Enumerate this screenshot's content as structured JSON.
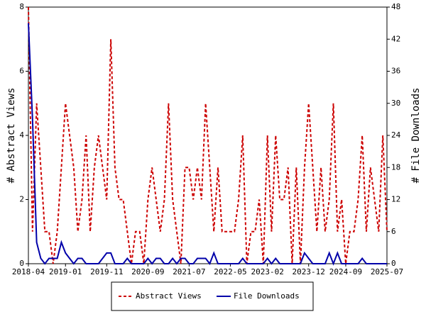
{
  "chart_data": {
    "type": "line",
    "categories": [
      "2018-04",
      null,
      null,
      null,
      null,
      null,
      null,
      null,
      null,
      "2019-01",
      null,
      null,
      null,
      null,
      null,
      null,
      null,
      null,
      null,
      "2019-11",
      null,
      null,
      null,
      null,
      null,
      null,
      null,
      null,
      null,
      "2020-09",
      null,
      null,
      null,
      null,
      null,
      null,
      null,
      null,
      null,
      "2021-07",
      null,
      null,
      null,
      null,
      null,
      null,
      null,
      null,
      null,
      "2022-05",
      null,
      null,
      null,
      null,
      null,
      null,
      null,
      null,
      "2023-02",
      null,
      null,
      null,
      null,
      null,
      null,
      null,
      null,
      null,
      "2023-12",
      null,
      null,
      null,
      null,
      null,
      null,
      null,
      null,
      "2024-09",
      null,
      null,
      null,
      null,
      null,
      null,
      null,
      null,
      null,
      "2025-07"
    ],
    "series": [
      {
        "name": "Abstract Views",
        "color": "#cc0000",
        "axis": "y",
        "values": [
          8,
          1,
          5,
          3,
          1,
          1,
          0,
          1,
          3,
          5,
          4,
          3,
          1,
          2,
          4,
          1,
          3,
          4,
          3,
          2,
          7,
          3,
          2,
          2,
          1,
          0,
          1,
          1,
          0,
          2,
          3,
          2,
          1,
          2,
          5,
          2,
          1,
          0,
          3,
          3,
          2,
          3,
          2,
          5,
          3,
          1,
          3,
          1,
          1,
          1,
          1,
          2,
          4,
          0,
          1,
          1,
          2,
          0,
          4,
          1,
          4,
          2,
          2,
          3,
          0,
          3,
          0,
          3,
          5,
          3,
          1,
          3,
          1,
          2,
          5,
          1,
          2,
          0,
          1,
          1,
          2,
          4,
          1,
          3,
          2,
          1,
          4,
          1
        ]
      },
      {
        "name": "File Downloads",
        "color": "#0000aa",
        "axis": "y2",
        "values": [
          45,
          27,
          4,
          1,
          0,
          1,
          1,
          1,
          4,
          2,
          1,
          0,
          1,
          1,
          0,
          0,
          0,
          0,
          1,
          2,
          2,
          0,
          0,
          0,
          1,
          0,
          0,
          0,
          0,
          1,
          0,
          1,
          1,
          0,
          0,
          1,
          0,
          1,
          1,
          0,
          0,
          1,
          1,
          1,
          0,
          2,
          0,
          0,
          0,
          0,
          0,
          0,
          1,
          0,
          0,
          0,
          0,
          0,
          1,
          0,
          1,
          0,
          0,
          0,
          0,
          0,
          0,
          2,
          1,
          0,
          0,
          0,
          0,
          2,
          0,
          2,
          0,
          0,
          0,
          0,
          0,
          1,
          0,
          0,
          0,
          0,
          0,
          0
        ]
      }
    ],
    "ylabel": "# Abstract Views",
    "y2label": "# File Downloads",
    "ylim": [
      0,
      8
    ],
    "yticks": [
      0,
      2,
      4,
      6,
      8
    ],
    "y2lim": [
      0,
      48
    ],
    "y2ticks": [
      0,
      6,
      12,
      18,
      24,
      30,
      36,
      42,
      48
    ]
  }
}
